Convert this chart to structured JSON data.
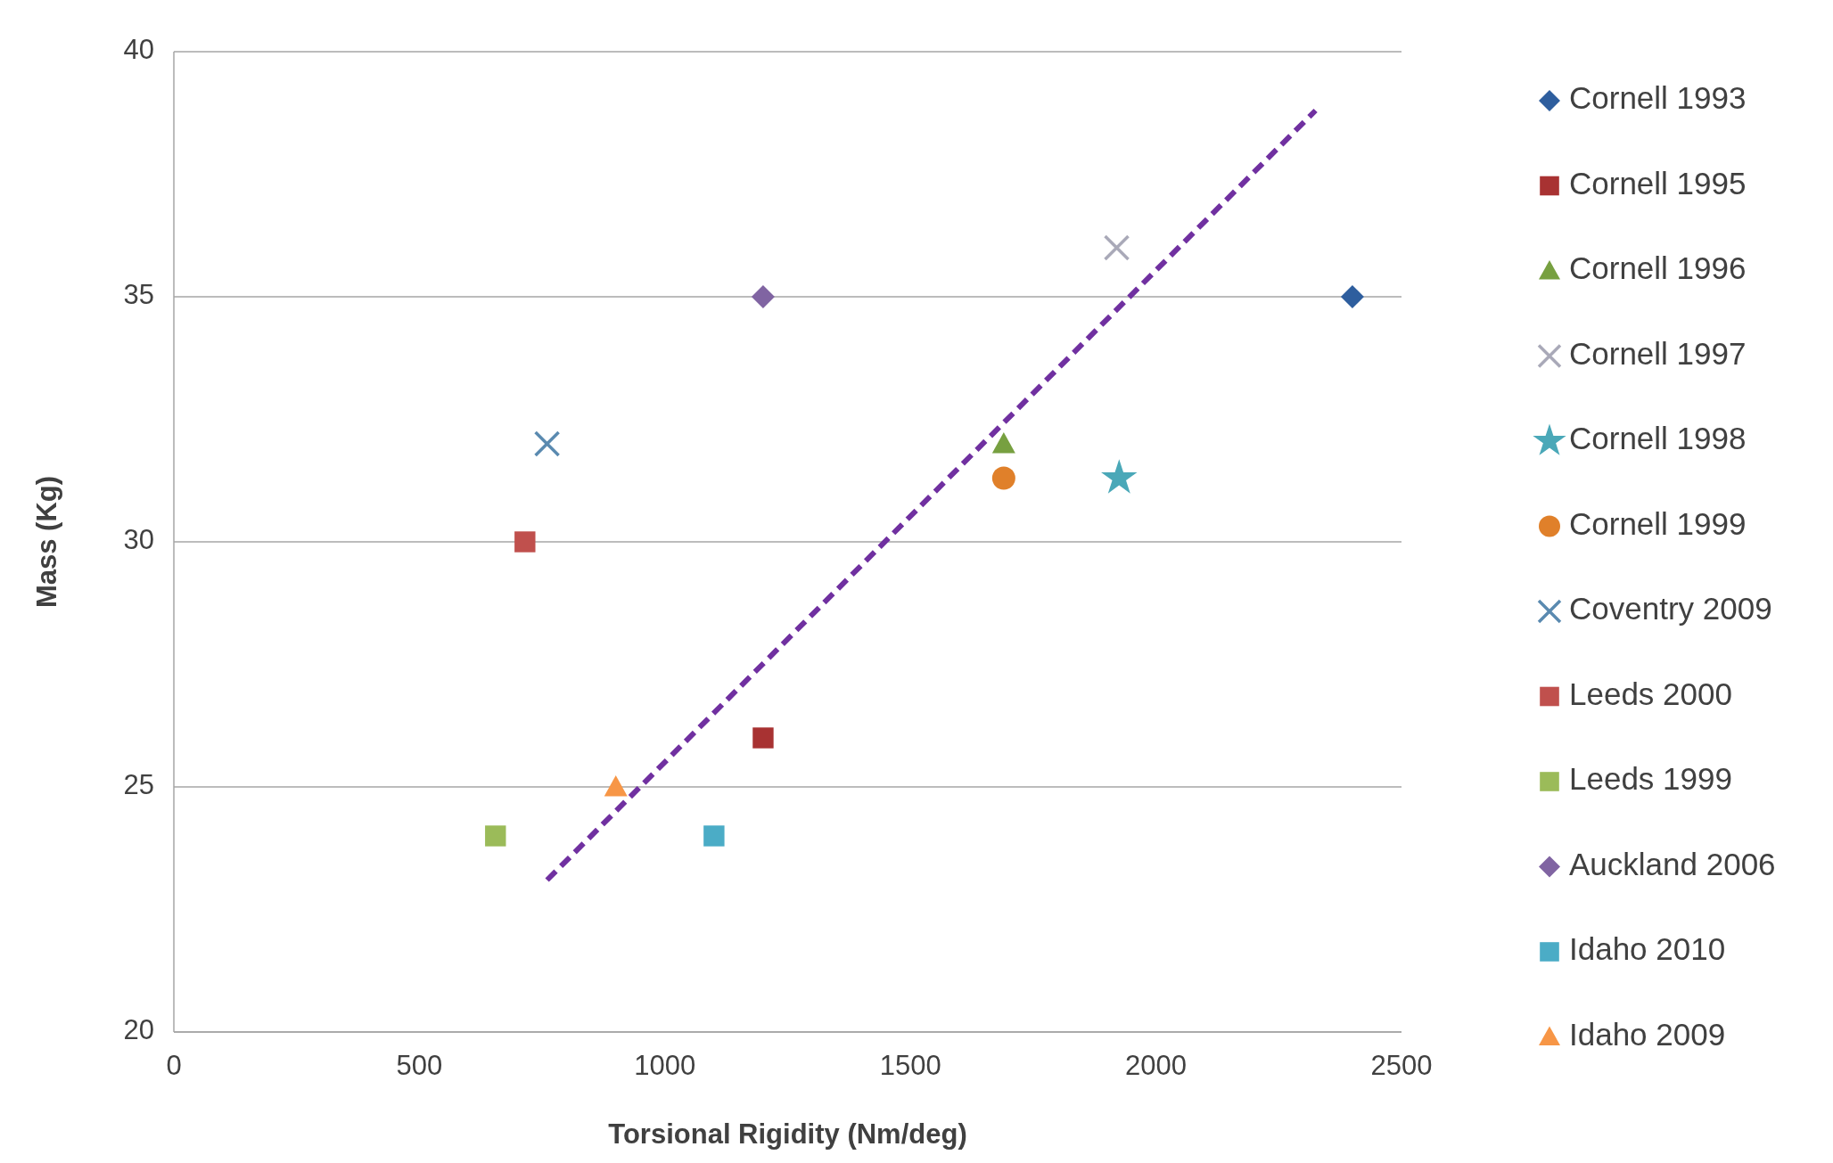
{
  "chart_data": {
    "type": "scatter",
    "xlabel": "Torsional Rigidity (Nm/deg)",
    "ylabel": "Mass (Kg)",
    "xlim": [
      0,
      2500
    ],
    "xticks": [
      0,
      500,
      1000,
      1500,
      2000,
      2500
    ],
    "ylim": [
      20,
      40
    ],
    "yticks": [
      20,
      25,
      30,
      35,
      40
    ],
    "grid": "y",
    "legend": "right",
    "series": [
      {
        "name": "Cornell 1993",
        "color": "#2e5e9e",
        "marker": "diamond",
        "x": [
          2400
        ],
        "values": [
          35
        ]
      },
      {
        "name": "Cornell 1995",
        "color": "#a83232",
        "marker": "square",
        "x": [
          1200
        ],
        "values": [
          26
        ]
      },
      {
        "name": "Cornell 1996",
        "color": "#77a040",
        "marker": "triangle",
        "x": [
          1690
        ],
        "values": [
          32
        ]
      },
      {
        "name": "Cornell 1997",
        "color": "#a9a9b8",
        "marker": "cross",
        "x": [
          1920
        ],
        "values": [
          36
        ]
      },
      {
        "name": "Cornell 1998",
        "color": "#4aa8b8",
        "marker": "star",
        "x": [
          1925
        ],
        "values": [
          31.3
        ]
      },
      {
        "name": "Cornell 1999",
        "color": "#e0802a",
        "marker": "circle",
        "x": [
          1690
        ],
        "values": [
          31.3
        ]
      },
      {
        "name": "Coventry 2009",
        "color": "#5a8ab0",
        "marker": "cross",
        "x": [
          760
        ],
        "values": [
          32
        ]
      },
      {
        "name": "Leeds 2000",
        "color": "#c0504d",
        "marker": "square",
        "x": [
          715
        ],
        "values": [
          30
        ]
      },
      {
        "name": "Leeds 1999",
        "color": "#9bbb59",
        "marker": "square",
        "x": [
          655
        ],
        "values": [
          24
        ]
      },
      {
        "name": "Auckland 2006",
        "color": "#8064a2",
        "marker": "diamond",
        "x": [
          1200
        ],
        "values": [
          35
        ]
      },
      {
        "name": "Idaho 2010",
        "color": "#4bacc6",
        "marker": "square",
        "x": [
          1100
        ],
        "values": [
          24
        ]
      },
      {
        "name": "Idaho 2009",
        "color": "#f79646",
        "marker": "triangle",
        "x": [
          900
        ],
        "values": [
          25
        ]
      },
      {
        "type": "line",
        "color": "#7030a0",
        "line_style": "dashed",
        "x": [
          760,
          2325
        ],
        "values": [
          23.1,
          38.8
        ]
      }
    ]
  }
}
